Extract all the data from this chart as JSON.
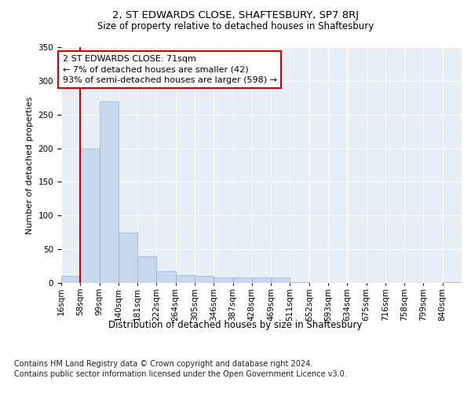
{
  "title1": "2, ST EDWARDS CLOSE, SHAFTESBURY, SP7 8RJ",
  "title2": "Size of property relative to detached houses in Shaftesbury",
  "xlabel": "Distribution of detached houses by size in Shaftesbury",
  "ylabel": "Number of detached properties",
  "bin_labels": [
    "16sqm",
    "58sqm",
    "99sqm",
    "140sqm",
    "181sqm",
    "222sqm",
    "264sqm",
    "305sqm",
    "346sqm",
    "387sqm",
    "428sqm",
    "469sqm",
    "511sqm",
    "552sqm",
    "593sqm",
    "634sqm",
    "675sqm",
    "716sqm",
    "758sqm",
    "799sqm",
    "840sqm"
  ],
  "bar_values": [
    10,
    200,
    270,
    75,
    40,
    17,
    12,
    10,
    8,
    8,
    8,
    8,
    1,
    0,
    0,
    0,
    0,
    0,
    0,
    0,
    1
  ],
  "bar_color": "#c5d8ee",
  "bar_edge_color": "#8ab0d0",
  "vline_x": 1.0,
  "annotation_text": "2 ST EDWARDS CLOSE: 71sqm\n← 7% of detached houses are smaller (42)\n93% of semi-detached houses are larger (598) →",
  "annotation_box_color": "white",
  "annotation_box_edge_color": "#cc0000",
  "vline_color": "#cc0000",
  "ylim": [
    0,
    350
  ],
  "yticks": [
    0,
    50,
    100,
    150,
    200,
    250,
    300,
    350
  ],
  "footnote1": "Contains HM Land Registry data © Crown copyright and database right 2024.",
  "footnote2": "Contains public sector information licensed under the Open Government Licence v3.0.",
  "plot_bg_color": "#e8eef5",
  "grid_color": "#ffffff",
  "title1_fontsize": 9.5,
  "title2_fontsize": 8.5,
  "xlabel_fontsize": 8.5,
  "ylabel_fontsize": 8,
  "tick_fontsize": 7.5,
  "annotation_fontsize": 8,
  "footnote_fontsize": 7
}
